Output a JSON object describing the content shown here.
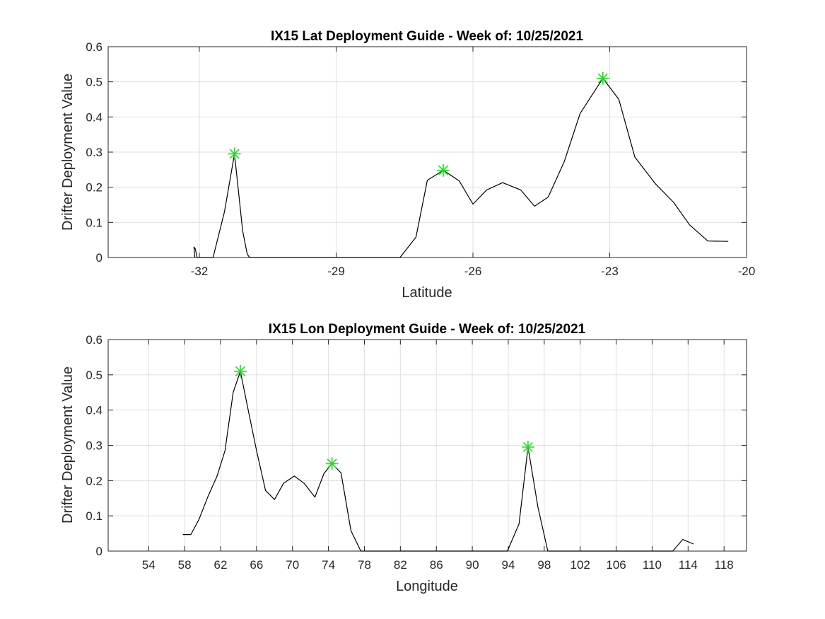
{
  "chart_data": [
    {
      "type": "line",
      "title": "IX15 Lat Deployment Guide - Week of: 10/25/2021",
      "xlabel": "Latitude",
      "ylabel": "Drifter Deployment Value",
      "xlim": [
        -34,
        -20
      ],
      "ylim": [
        0,
        0.6
      ],
      "xticks": [
        -32,
        -29,
        -26,
        -23,
        -20
      ],
      "yticks": [
        0,
        0.1,
        0.2,
        0.3,
        0.4,
        0.5,
        0.6
      ],
      "grid": true,
      "series": [
        {
          "line_color": "#000000",
          "x": [
            -32.1,
            -32.12,
            -32.09,
            -32.05,
            -31.7,
            -31.45,
            -31.23,
            -31.05,
            -30.95,
            -30.9,
            -27.6,
            -27.25,
            -27.0,
            -26.65,
            -26.3,
            -26.0,
            -25.7,
            -25.35,
            -24.95,
            -24.65,
            -24.35,
            -24.0,
            -23.65,
            -23.15,
            -22.8,
            -22.45,
            -22.0,
            -21.6,
            -21.25,
            -20.85,
            -20.4
          ],
          "y": [
            0.0,
            0.03,
            0.025,
            0.0,
            0.0,
            0.13,
            0.295,
            0.075,
            0.01,
            0.0,
            0.0,
            0.058,
            0.22,
            0.248,
            0.218,
            0.152,
            0.192,
            0.213,
            0.192,
            0.146,
            0.172,
            0.272,
            0.41,
            0.51,
            0.45,
            0.286,
            0.21,
            0.157,
            0.093,
            0.047,
            0.046
          ]
        }
      ],
      "markers": [
        {
          "x": -31.23,
          "y": 0.295
        },
        {
          "x": -26.65,
          "y": 0.248
        },
        {
          "x": -23.15,
          "y": 0.51
        }
      ],
      "marker_color": "#22dd22"
    },
    {
      "type": "line",
      "title": "IX15 Lon Deployment Guide - Week of: 10/25/2021",
      "xlabel": "Longitude",
      "ylabel": "Drifter Deployment Value",
      "xlim": [
        49.5,
        120.5
      ],
      "ylim": [
        0,
        0.6
      ],
      "xticks": [
        54,
        58,
        62,
        66,
        70,
        74,
        78,
        82,
        86,
        90,
        94,
        98,
        102,
        106,
        110,
        114,
        118
      ],
      "yticks": [
        0,
        0.1,
        0.2,
        0.3,
        0.4,
        0.5,
        0.6
      ],
      "grid": true,
      "series": [
        {
          "line_color": "#000000",
          "x": [
            57.8,
            58.7,
            59.6,
            60.6,
            61.6,
            62.5,
            63.4,
            64.2,
            65.0,
            66.0,
            67.0,
            68.0,
            69.0,
            70.2,
            71.3,
            72.5,
            73.5,
            74.4,
            75.4,
            76.5,
            77.6,
            78.5,
            93.9,
            95.2,
            96.2,
            97.3,
            98.4,
            112.3,
            113.4,
            114.6
          ],
          "y": [
            0.047,
            0.047,
            0.09,
            0.155,
            0.212,
            0.285,
            0.45,
            0.51,
            0.41,
            0.285,
            0.172,
            0.146,
            0.192,
            0.213,
            0.192,
            0.153,
            0.22,
            0.248,
            0.222,
            0.058,
            0.0,
            0.0,
            0.0,
            0.077,
            0.295,
            0.125,
            0.0,
            0.0,
            0.033,
            0.02
          ]
        }
      ],
      "markers": [
        {
          "x": 64.2,
          "y": 0.51
        },
        {
          "x": 74.4,
          "y": 0.248
        },
        {
          "x": 96.2,
          "y": 0.295
        }
      ],
      "marker_color": "#22dd22"
    }
  ]
}
